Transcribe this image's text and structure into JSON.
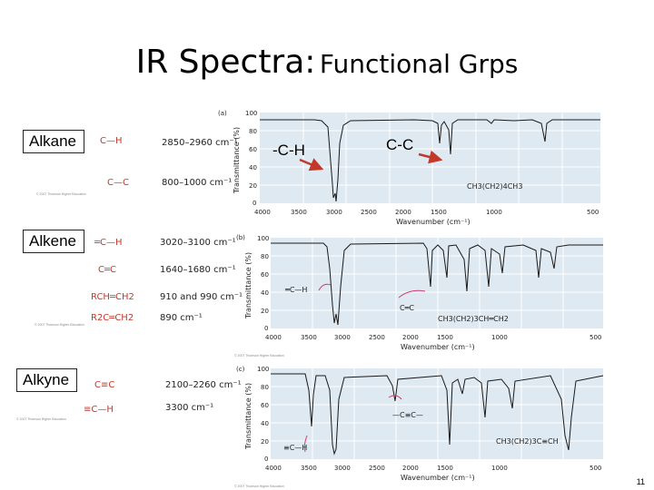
{
  "title": {
    "main": "IR Spectra:",
    "sub": "Functional Grps"
  },
  "rows": [
    {
      "category": "Alkane",
      "structures": [
        "C—H",
        "C—C"
      ],
      "wavenumbers": [
        "2850–2960 cm⁻¹",
        "800–1000 cm⁻¹"
      ],
      "panel_letter": "(a)",
      "molecule": "CH3(CH2)4CH3",
      "annotations": [
        "-C-H",
        "C-C"
      ],
      "copyright": "© 2007 Thomson Higher Education"
    },
    {
      "category": "Alkene",
      "structures": [
        "═C—H",
        "C═C",
        "RCH═CH2",
        "R2C═CH2"
      ],
      "wavenumbers": [
        "3020–3100 cm⁻¹",
        "1640–1680 cm⁻¹",
        "910 and 990 cm⁻¹",
        "890 cm⁻¹"
      ],
      "panel_letter": "(b)",
      "molecule": "CH3(CH2)3CH═CH2",
      "labels_in_plot": [
        "═C—H",
        "C═C"
      ],
      "copyright": "© 2007 Thomson Higher Education"
    },
    {
      "category": "Alkyne",
      "structures": [
        "C≡C",
        "≡C—H"
      ],
      "wavenumbers": [
        "2100–2260 cm⁻¹",
        "3300 cm⁻¹"
      ],
      "panel_letter": "(c)",
      "molecule": "CH3(CH2)3C≡CH",
      "labels_in_plot": [
        "—C≡C—",
        "≡C—H"
      ],
      "copyright": "© 2007 Thomson Higher Education"
    }
  ],
  "axis": {
    "y_label": "Transmittance (%)",
    "x_label": "Wavenumber (cm⁻¹)",
    "y_ticks": [
      "100",
      "80",
      "60",
      "40",
      "20",
      "0"
    ],
    "x_ticks": [
      "4000",
      "3500",
      "3000",
      "2500",
      "2000",
      "1500",
      "1000",
      "500"
    ]
  },
  "page_number": "11",
  "colors": {
    "plot_bg": "#dfe9f1",
    "arrow": "#c0392b",
    "highlight": "#d23a6e"
  }
}
